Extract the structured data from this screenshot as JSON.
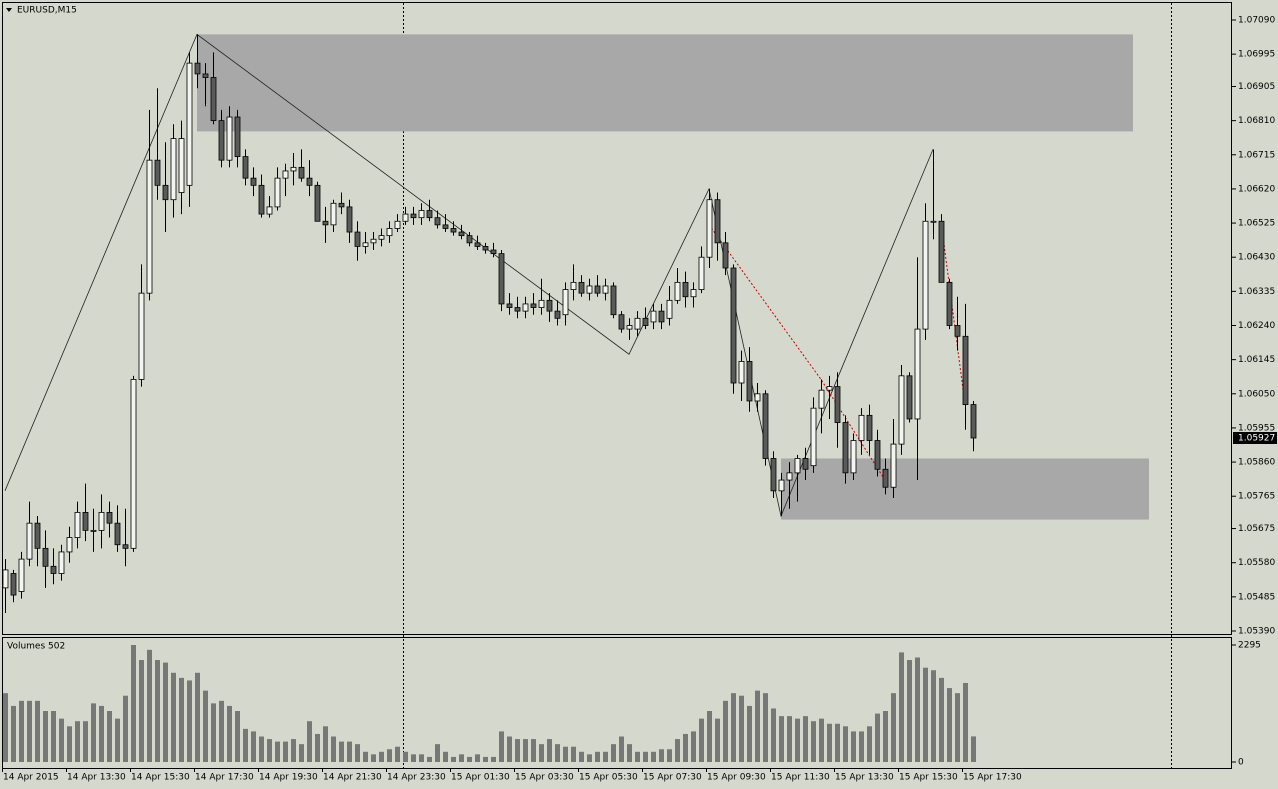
{
  "chart_data": [
    {
      "type": "candlestick",
      "title": "EURUSD,M15",
      "ylim": [
        1.0539,
        1.0709
      ],
      "yticks": [
        {
          "value": 1.0709,
          "label": "1.07090"
        },
        1.06995,
        1.06905,
        {
          "value": 1.0681,
          "label": "1.06810"
        },
        1.06715,
        {
          "value": 1.0662,
          "label": "1.06620"
        },
        1.06525,
        {
          "value": 1.0643,
          "label": "1.06430"
        },
        1.06335,
        {
          "value": 1.0624,
          "label": "1.06240"
        },
        1.06145,
        {
          "value": 1.0605,
          "label": "1.06050"
        },
        1.05955,
        {
          "value": 1.0586,
          "label": "1.05860"
        },
        1.05765,
        1.05675,
        {
          "value": 1.0558,
          "label": "1.05580"
        },
        1.05485,
        {
          "value": 1.0539,
          "label": "1.05390"
        }
      ],
      "last_price": 1.05927,
      "colors": {
        "up": "#f4f4f0",
        "down": "#5a5a5a",
        "wick": "#000000",
        "zone": "#a8a8a8",
        "zigzag": "#222222",
        "signal": "#cc0000"
      },
      "open": [
        1.0551,
        1.0555,
        1.055,
        1.0559,
        1.0569,
        1.0562,
        1.0557,
        1.0555,
        1.0561,
        1.0565,
        1.0572,
        1.0567,
        1.0567,
        1.0572,
        1.0569,
        1.0563,
        1.0562,
        1.0609,
        1.0633,
        1.067,
        1.0663,
        1.0659,
        1.0661,
        1.0663,
        1.0697,
        1.0694,
        1.0693,
        1.0681,
        1.067,
        1.0682,
        1.0671,
        1.0665,
        1.0663,
        1.0655,
        1.0657,
        1.0665,
        1.0667,
        1.0668,
        1.0665,
        1.0663,
        1.0653,
        1.0652,
        1.0658,
        1.0657,
        1.065,
        1.0646,
        1.0647,
        1.0648,
        1.0649,
        1.0651,
        1.0653,
        1.0655,
        1.0654,
        1.0656,
        1.0654,
        1.0652,
        1.0651,
        1.065,
        1.0649,
        1.0647,
        1.0646,
        1.0645,
        1.0644,
        1.063,
        1.0629,
        1.0628,
        1.063,
        1.0629,
        1.0631,
        1.0628,
        1.0627,
        1.0634,
        1.0636,
        1.0633,
        1.0635,
        1.0633,
        1.0635,
        1.0627,
        1.0623,
        1.0623,
        1.0626,
        1.0625,
        1.0628,
        1.0626,
        1.0631,
        1.0636,
        1.0632,
        1.0634,
        1.0643,
        1.0659,
        1.0647,
        1.064,
        1.0608,
        1.0614,
        1.0603,
        1.0605,
        1.0587,
        1.0578,
        1.0581,
        1.0583,
        1.0587,
        1.0585,
        1.0601,
        1.0606,
        1.0607,
        1.0597,
        1.0583,
        1.0592,
        1.0599,
        1.0592,
        1.0584,
        1.0579,
        1.0591,
        1.061,
        1.0598,
        1.0623,
        1.0653,
        1.0653,
        1.0636,
        1.0624,
        1.0621,
        1.0602
      ],
      "high": [
        1.0559,
        1.0556,
        1.0561,
        1.0575,
        1.0571,
        1.0567,
        1.0562,
        1.0563,
        1.0568,
        1.0575,
        1.058,
        1.0573,
        1.0577,
        1.0575,
        1.0574,
        1.0573,
        1.061,
        1.0641,
        1.0684,
        1.069,
        1.0675,
        1.068,
        1.0681,
        1.07,
        1.0705,
        1.0697,
        1.07,
        1.0684,
        1.0685,
        1.0684,
        1.0673,
        1.0668,
        1.0666,
        1.066,
        1.0668,
        1.0669,
        1.0672,
        1.0673,
        1.067,
        1.0664,
        1.0657,
        1.0659,
        1.0661,
        1.0659,
        1.0653,
        1.065,
        1.065,
        1.0651,
        1.0653,
        1.0655,
        1.0657,
        1.0657,
        1.0658,
        1.0659,
        1.0656,
        1.0655,
        1.0653,
        1.0652,
        1.065,
        1.0649,
        1.0647,
        1.0647,
        1.0645,
        1.0633,
        1.0632,
        1.0632,
        1.0633,
        1.0637,
        1.0633,
        1.0631,
        1.0636,
        1.0641,
        1.0638,
        1.0637,
        1.0638,
        1.0637,
        1.0636,
        1.0628,
        1.0626,
        1.0628,
        1.0629,
        1.063,
        1.063,
        1.0635,
        1.064,
        1.0639,
        1.0636,
        1.0646,
        1.0662,
        1.0661,
        1.065,
        1.0641,
        1.0617,
        1.0618,
        1.0608,
        1.0606,
        1.0589,
        1.0583,
        1.0586,
        1.0588,
        1.059,
        1.0604,
        1.0609,
        1.061,
        1.0611,
        1.0599,
        1.0594,
        1.0601,
        1.0602,
        1.0595,
        1.0587,
        1.0598,
        1.0613,
        1.0611,
        1.0643,
        1.0658,
        1.0673,
        1.0655,
        1.0637,
        1.0632,
        1.063,
        1.0603
      ],
      "low": [
        1.0544,
        1.0547,
        1.0548,
        1.0557,
        1.0557,
        1.0551,
        1.0552,
        1.0553,
        1.0558,
        1.0562,
        1.0564,
        1.0561,
        1.0562,
        1.0565,
        1.0561,
        1.0557,
        1.0561,
        1.0607,
        1.0631,
        1.0659,
        1.065,
        1.0654,
        1.0655,
        1.0657,
        1.069,
        1.0685,
        1.068,
        1.0668,
        1.0668,
        1.0668,
        1.0663,
        1.066,
        1.0654,
        1.0654,
        1.0656,
        1.066,
        1.0663,
        1.0664,
        1.066,
        1.0653,
        1.0647,
        1.065,
        1.0655,
        1.0647,
        1.0642,
        1.0644,
        1.0645,
        1.0646,
        1.0647,
        1.065,
        1.0652,
        1.0652,
        1.0652,
        1.0653,
        1.0651,
        1.065,
        1.0649,
        1.0648,
        1.0646,
        1.0645,
        1.0644,
        1.0643,
        1.0628,
        1.0627,
        1.0626,
        1.0626,
        1.0627,
        1.0627,
        1.0625,
        1.0624,
        1.0624,
        1.0631,
        1.0632,
        1.0631,
        1.0632,
        1.0631,
        1.0626,
        1.0622,
        1.062,
        1.0621,
        1.0623,
        1.0623,
        1.0623,
        1.0624,
        1.063,
        1.0629,
        1.0629,
        1.0633,
        1.064,
        1.0642,
        1.0638,
        1.0605,
        1.0603,
        1.06,
        1.06,
        1.0585,
        1.0576,
        1.0571,
        1.0573,
        1.0575,
        1.0581,
        1.0583,
        1.0594,
        1.0598,
        1.059,
        1.058,
        1.0581,
        1.0588,
        1.0588,
        1.0582,
        1.0577,
        1.0576,
        1.0588,
        1.0597,
        1.0581,
        1.062,
        1.0648,
        1.0636,
        1.0623,
        1.0617,
        1.0595,
        1.0589
      ],
      "close": [
        1.0556,
        1.0549,
        1.0559,
        1.0569,
        1.0562,
        1.0557,
        1.0555,
        1.0561,
        1.0565,
        1.0572,
        1.0567,
        1.0567,
        1.0572,
        1.0569,
        1.0563,
        1.0562,
        1.0609,
        1.0633,
        1.067,
        1.0663,
        1.0659,
        1.0676,
        1.0676,
        1.0697,
        1.0694,
        1.0693,
        1.0681,
        1.067,
        1.0682,
        1.0671,
        1.0665,
        1.0663,
        1.0655,
        1.0657,
        1.0665,
        1.0667,
        1.0668,
        1.0665,
        1.0663,
        1.0653,
        1.0652,
        1.0658,
        1.0657,
        1.065,
        1.0646,
        1.0647,
        1.0648,
        1.0649,
        1.0651,
        1.0653,
        1.0655,
        1.0654,
        1.0656,
        1.0654,
        1.0652,
        1.0651,
        1.065,
        1.0649,
        1.0647,
        1.0646,
        1.0645,
        1.0644,
        1.063,
        1.0629,
        1.0628,
        1.063,
        1.0629,
        1.0631,
        1.0628,
        1.0626,
        1.0634,
        1.0636,
        1.0633,
        1.0635,
        1.0633,
        1.0635,
        1.0627,
        1.0623,
        1.0624,
        1.0626,
        1.0624,
        1.0628,
        1.0625,
        1.0631,
        1.0636,
        1.0632,
        1.0634,
        1.0643,
        1.0659,
        1.0647,
        1.064,
        1.0608,
        1.0614,
        1.0603,
        1.0605,
        1.0587,
        1.0578,
        1.0581,
        1.0583,
        1.0587,
        1.0584,
        1.0601,
        1.0606,
        1.0607,
        1.0597,
        1.0583,
        1.0592,
        1.0599,
        1.0592,
        1.0584,
        1.0579,
        1.0591,
        1.061,
        1.0598,
        1.0623,
        1.0653,
        1.0653,
        1.0636,
        1.0624,
        1.0621,
        1.0602,
        1.05927
      ],
      "zones": [
        {
          "x": [
            24,
            141
          ],
          "y": [
            1.0678,
            1.0705
          ]
        },
        {
          "x": [
            97,
            143
          ],
          "y": [
            1.057,
            1.0587
          ]
        }
      ],
      "zigzag": {
        "x": [
          0,
          24,
          78,
          88,
          97,
          104,
          116
        ],
        "y": [
          1.0578,
          1.0705,
          1.0616,
          1.0662,
          1.0571,
          1.0609,
          1.0673
        ]
      },
      "signal_lines": [
        {
          "x": [
            88,
            102,
            110
          ],
          "y": [
            1.0652,
            1.0609,
            1.0581
          ]
        },
        {
          "x": [
            117,
            120
          ],
          "y": [
            1.0653,
            1.0602
          ]
        }
      ]
    },
    {
      "type": "bar",
      "title": "Volumes 502",
      "color": "#777777",
      "ylim": [
        0,
        2295
      ],
      "yticks": [
        0,
        2295
      ],
      "categories": [
        "14 Apr 2015",
        null,
        null,
        null,
        null,
        null,
        null,
        null,
        "14 Apr 13:30",
        null,
        null,
        null,
        null,
        null,
        null,
        null,
        "14 Apr 15:30",
        null,
        null,
        null,
        null,
        null,
        null,
        null,
        "14 Apr 17:30",
        null,
        null,
        null,
        null,
        null,
        null,
        null,
        "14 Apr 19:30",
        null,
        null,
        null,
        null,
        null,
        null,
        null,
        "14 Apr 21:30",
        null,
        null,
        null,
        null,
        null,
        null,
        null,
        "14 Apr 23:30",
        null,
        null,
        null,
        null,
        null,
        null,
        null,
        "15 Apr 01:30",
        null,
        null,
        null,
        null,
        null,
        null,
        null,
        "15 Apr 03:30",
        null,
        null,
        null,
        null,
        null,
        null,
        null,
        "15 Apr 05:30",
        null,
        null,
        null,
        null,
        null,
        null,
        null,
        "15 Apr 07:30",
        null,
        null,
        null,
        null,
        null,
        null,
        null,
        "15 Apr 09:30",
        null,
        null,
        null,
        null,
        null,
        null,
        null,
        "15 Apr 11:30",
        null,
        null,
        null,
        null,
        null,
        null,
        null,
        "15 Apr 13:30",
        null,
        null,
        null,
        null,
        null,
        null,
        null,
        "15 Apr 15:30",
        null,
        null,
        null,
        null,
        null,
        null,
        null,
        "15 Apr 17:30",
        null
      ],
      "values": [
        1350,
        1100,
        1200,
        1200,
        1200,
        1000,
        1000,
        850,
        700,
        800,
        800,
        1150,
        1100,
        1000,
        850,
        1300,
        2295,
        2000,
        2200,
        2000,
        1950,
        1750,
        1650,
        1600,
        1750,
        1400,
        1150,
        1200,
        1100,
        1000,
        650,
        600,
        500,
        450,
        400,
        400,
        450,
        350,
        800,
        550,
        700,
        500,
        400,
        400,
        350,
        200,
        150,
        200,
        250,
        300,
        200,
        150,
        150,
        100,
        350,
        200,
        100,
        150,
        100,
        150,
        100,
        100,
        600,
        500,
        450,
        450,
        450,
        350,
        450,
        350,
        300,
        300,
        200,
        150,
        200,
        200,
        350,
        500,
        350,
        200,
        200,
        200,
        250,
        250,
        450,
        550,
        600,
        850,
        1000,
        850,
        1200,
        1350,
        1300,
        1100,
        1400,
        1350,
        1050,
        900,
        900,
        850,
        900,
        800,
        850,
        750,
        750,
        700,
        600,
        600,
        700,
        950,
        1000,
        1350,
        2150,
        2000,
        2050,
        1850,
        1800,
        1650,
        1450,
        1350,
        1550,
        502
      ]
    }
  ]
}
